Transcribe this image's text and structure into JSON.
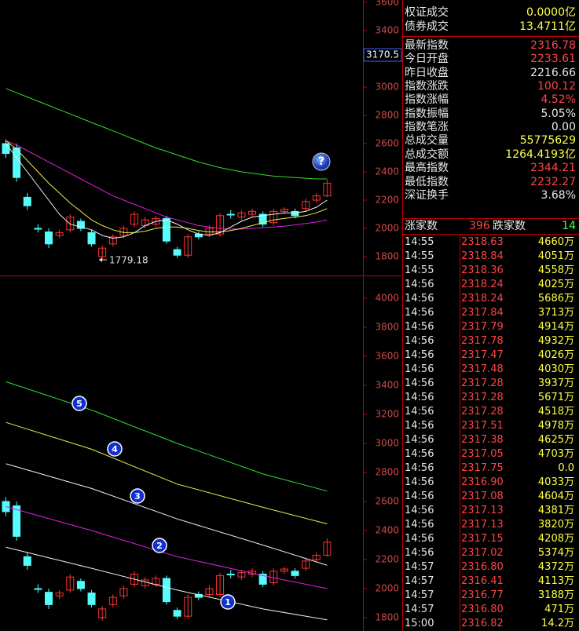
{
  "top_chart": {
    "yticks": [
      3600,
      3400,
      3000,
      2800,
      2600,
      2400,
      2200,
      2000,
      1800
    ],
    "cursor_price": "3170.5",
    "low_label": "1779.18",
    "help": "?",
    "ma": [
      {
        "color": "#33dd33",
        "values": [
          2990,
          2960,
          2930,
          2900,
          2870,
          2840,
          2810,
          2780,
          2750,
          2720,
          2690,
          2660,
          2630,
          2600,
          2570,
          2545,
          2520,
          2495,
          2470,
          2450,
          2430,
          2415,
          2400,
          2390,
          2380,
          2370,
          2365,
          2360,
          2355,
          2350,
          2350
        ]
      },
      {
        "color": "#e020e0",
        "values": [
          2620,
          2590,
          2550,
          2510,
          2470,
          2430,
          2390,
          2350,
          2310,
          2270,
          2230,
          2200,
          2170,
          2140,
          2110,
          2080,
          2060,
          2040,
          2020,
          2010,
          2000,
          1995,
          1995,
          2000,
          2005,
          2010,
          2015,
          2025,
          2035,
          2045,
          2060
        ]
      },
      {
        "color": "#eeee44",
        "values": [
          2620,
          2560,
          2480,
          2400,
          2320,
          2250,
          2180,
          2120,
          2060,
          2020,
          1990,
          1970,
          1970,
          1980,
          2000,
          2010,
          2010,
          2000,
          1985,
          1975,
          1975,
          1985,
          2000,
          2020,
          2040,
          2060,
          2070,
          2080,
          2090,
          2110,
          2140
        ]
      },
      {
        "color": "#f0f0f0",
        "values": [
          2600,
          2500,
          2400,
          2300,
          2200,
          2100,
          2030,
          2010,
          1990,
          1950,
          1930,
          1940,
          1970,
          2020,
          2050,
          2060,
          2030,
          1990,
          1960,
          1950,
          1970,
          2010,
          2050,
          2080,
          2090,
          2100,
          2110,
          2110,
          2120,
          2150,
          2200
        ]
      }
    ]
  },
  "bottom_chart": {
    "yticks": [
      4000,
      3800,
      3600,
      3400,
      3200,
      3000,
      2800,
      2600,
      2400,
      2200,
      2000,
      1800
    ],
    "lines": [
      {
        "color": "#33dd33",
        "x": [
          0,
          8,
          16,
          24,
          30
        ],
        "values": [
          3425,
          3230,
          3000,
          2790,
          2672
        ]
      },
      {
        "color": "#eeee44",
        "x": [
          0,
          8,
          16,
          24,
          30
        ],
        "values": [
          3145,
          2960,
          2720,
          2560,
          2446
        ]
      },
      {
        "color": "#f0f0f0",
        "x": [
          0,
          8,
          16,
          24,
          30
        ],
        "values": [
          2860,
          2690,
          2480,
          2300,
          2161
        ]
      },
      {
        "color": "#e020e0",
        "x": [
          0,
          8,
          16,
          24,
          30
        ],
        "values": [
          2565,
          2400,
          2220,
          2090,
          2000
        ]
      },
      {
        "color": "#f0f0f0",
        "x": [
          0,
          8,
          16,
          24,
          30
        ],
        "values": [
          2285,
          2140,
          1990,
          1860,
          1785
        ]
      }
    ],
    "markers": [
      "1",
      "2",
      "3",
      "4",
      "5"
    ]
  },
  "candles": [
    [
      2600,
      2630,
      2500,
      2530
    ],
    [
      2570,
      2600,
      2330,
      2360
    ],
    [
      2220,
      2250,
      2130,
      2160
    ],
    [
      2000,
      2030,
      1970,
      1995
    ],
    [
      1975,
      2000,
      1860,
      1890
    ],
    [
      1950,
      1990,
      1930,
      1970
    ],
    [
      1990,
      2100,
      1970,
      2080
    ],
    [
      2050,
      2070,
      1980,
      2000
    ],
    [
      1970,
      1990,
      1870,
      1890
    ],
    [
      1800,
      1880,
      1779.18,
      1860
    ],
    [
      1890,
      1960,
      1870,
      1940
    ],
    [
      1950,
      2020,
      1930,
      2000
    ],
    [
      2030,
      2120,
      2010,
      2100
    ],
    [
      2020,
      2080,
      2000,
      2060
    ],
    [
      2030,
      2090,
      2010,
      2070
    ],
    [
      2070,
      2090,
      1890,
      1910
    ],
    [
      1850,
      1870,
      1790,
      1810
    ],
    [
      1810,
      1960,
      1790,
      1940
    ],
    [
      1960,
      1980,
      1920,
      1940
    ],
    [
      1960,
      2020,
      1940,
      2000
    ],
    [
      1960,
      2110,
      1940,
      2090
    ],
    [
      2100,
      2130,
      2070,
      2095
    ],
    [
      2080,
      2130,
      2060,
      2110
    ],
    [
      2100,
      2140,
      2080,
      2120
    ],
    [
      2100,
      2120,
      2010,
      2030
    ],
    [
      2040,
      2140,
      2020,
      2120
    ],
    [
      2120,
      2150,
      2100,
      2135
    ],
    [
      2120,
      2140,
      2070,
      2090
    ],
    [
      2140,
      2210,
      2120,
      2190
    ],
    [
      2200,
      2250,
      2180,
      2230
    ],
    [
      2230,
      2344.21,
      2220,
      2320
    ]
  ],
  "stats": [
    [
      "权证成交",
      "0.0000亿"
    ],
    [
      "债券成交",
      "13.4711亿"
    ],
    [
      "最新指数",
      "2316.78"
    ],
    [
      "今日开盘",
      "2233.61"
    ],
    [
      "昨日收盘",
      "2216.66"
    ],
    [
      "指数涨跌",
      "100.12"
    ],
    [
      "指数涨幅",
      "4.52%"
    ],
    [
      "指数振幅",
      "5.05%"
    ],
    [
      "指数笔涨",
      "0.00"
    ],
    [
      "总成交量",
      "55775629"
    ],
    [
      "总成交额",
      "1264.4193亿"
    ],
    [
      "最高指数",
      "2344.21"
    ],
    [
      "最低指数",
      "2232.27"
    ],
    [
      "深证换手",
      "3.68%"
    ]
  ],
  "breadth": {
    "up_label": "涨家数",
    "up": "396",
    "down_label": "跌家数",
    "down": "14"
  },
  "ticks": [
    [
      "14:55",
      "2318.63",
      "4660万"
    ],
    [
      "14:55",
      "2318.84",
      "4051万"
    ],
    [
      "14:55",
      "2318.36",
      "4558万"
    ],
    [
      "14:56",
      "2318.24",
      "4025万"
    ],
    [
      "14:56",
      "2318.24",
      "5686万"
    ],
    [
      "14:56",
      "2317.84",
      "3713万"
    ],
    [
      "14:56",
      "2317.79",
      "4914万"
    ],
    [
      "14:56",
      "2317.78",
      "4932万"
    ],
    [
      "14:56",
      "2317.47",
      "4026万"
    ],
    [
      "14:56",
      "2317.48",
      "4030万"
    ],
    [
      "14:56",
      "2317.28",
      "3937万"
    ],
    [
      "14:56",
      "2317.28",
      "5671万"
    ],
    [
      "14:56",
      "2317.28",
      "4518万"
    ],
    [
      "14:56",
      "2317.51",
      "4978万"
    ],
    [
      "14:56",
      "2317.38",
      "4625万"
    ],
    [
      "14:56",
      "2317.05",
      "4703万"
    ],
    [
      "14:56",
      "2317.75",
      "0.0"
    ],
    [
      "14:56",
      "2316.90",
      "4033万"
    ],
    [
      "14:56",
      "2317.08",
      "4604万"
    ],
    [
      "14:56",
      "2317.13",
      "4381万"
    ],
    [
      "14:56",
      "2317.13",
      "3820万"
    ],
    [
      "14:56",
      "2317.15",
      "4208万"
    ],
    [
      "14:56",
      "2317.02",
      "5374万"
    ],
    [
      "14:57",
      "2316.80",
      "4372万"
    ],
    [
      "14:57",
      "2316.41",
      "4113万"
    ],
    [
      "14:57",
      "2316.77",
      "3188万"
    ],
    [
      "14:57",
      "2316.80",
      "471万"
    ],
    [
      "15:00",
      "2316.82",
      "14.2万"
    ]
  ]
}
